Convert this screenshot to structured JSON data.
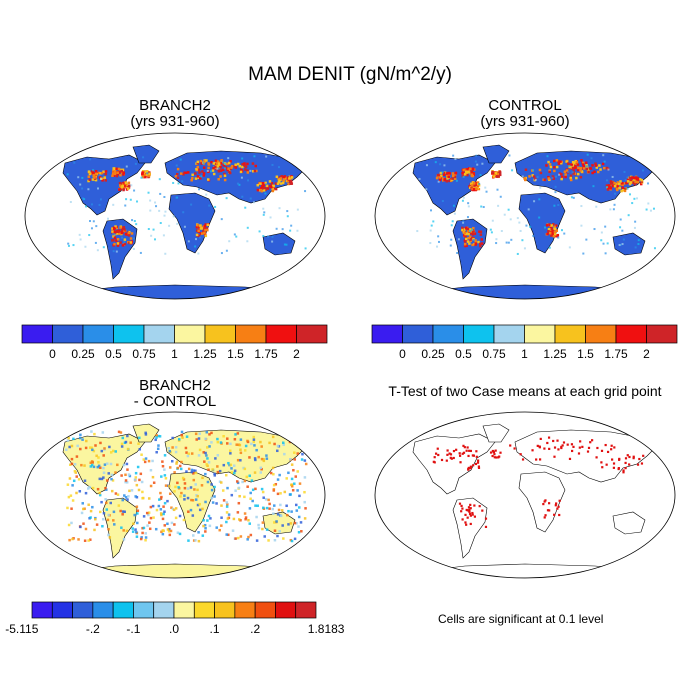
{
  "figure": {
    "title": "MAM DENIT (gN/m^2/y)"
  },
  "panels": [
    {
      "id": "branch2",
      "title_line1": "BRANCH2",
      "title_line2": "(yrs 931-960)"
    },
    {
      "id": "control",
      "title_line1": "CONTROL",
      "title_line2": "(yrs 931-960)"
    },
    {
      "id": "difference",
      "title_line1": "BRANCH2",
      "title_line2": "- CONTROL"
    },
    {
      "id": "ttest",
      "title_line1": "T-Test of two Case means at each grid point",
      "title_line2": ""
    }
  ],
  "colorbars": {
    "absolute": {
      "colors": [
        "#3a1cf0",
        "#2f5fd9",
        "#2a8ee8",
        "#0ec2ee",
        "#a4d4ee",
        "#fbf6a0",
        "#f7c21e",
        "#f77f14",
        "#f01010",
        "#cf2428"
      ],
      "labels": [
        "0",
        "0.25",
        "0.5",
        "0.75",
        "1",
        "1.25",
        "1.5",
        "1.75",
        "2"
      ]
    },
    "difference": {
      "colors": [
        "#3a1cf0",
        "#2432e5",
        "#2f5fd9",
        "#2a8ee8",
        "#0ec2ee",
        "#6fc6ef",
        "#a4d4ee",
        "#fbf6a0",
        "#fbd82c",
        "#f7c21e",
        "#f77f14",
        "#f04f10",
        "#e01010",
        "#cf2428"
      ],
      "labels": [
        "-5.115",
        "-.2",
        "-.1",
        ".0",
        ".1",
        ".2",
        "1.8183"
      ]
    }
  },
  "significance_note": "Cells are significant at 0.1 level",
  "map_colors": {
    "ocean": "#ffffff",
    "land_base_abs": "#2f5fd9",
    "land_base_diff": "#fbf6a0",
    "significant": "#e01010",
    "outline": "#000000"
  }
}
